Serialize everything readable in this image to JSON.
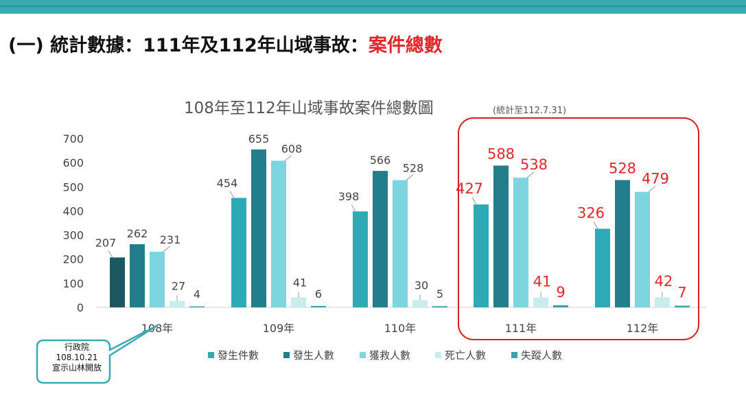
{
  "page": {
    "heading_prefix": "(一) 統計數據：111年及112年山域事故：",
    "heading_highlight": "案件總數",
    "callout_lines": [
      "行政院",
      "108.10.21",
      "宣示山林開放"
    ]
  },
  "colors": {
    "top_bar": "#3aa9b0",
    "highlight": "#e3262a",
    "highlight_box": "#d42020",
    "callout_border": "#3aa9b0"
  },
  "chart_data": {
    "type": "bar",
    "title": "108年至112年山域事故案件總數圖",
    "subtitle": "(統計至112.7.31)",
    "categories": [
      "108年",
      "109年",
      "110年",
      "111年",
      "112年"
    ],
    "highlighted_categories": [
      "111年",
      "112年"
    ],
    "ylim": [
      0,
      700
    ],
    "yticks": [
      0,
      100,
      200,
      300,
      400,
      500,
      600,
      700
    ],
    "grid": false,
    "legend_position": "bottom",
    "series": [
      {
        "name": "發生件數",
        "color": "#2ea9b6",
        "values": [
          207,
          454,
          398,
          427,
          326
        ]
      },
      {
        "name": "發生人數",
        "color": "#227e8a",
        "values": [
          262,
          655,
          566,
          588,
          528
        ]
      },
      {
        "name": "獲救人數",
        "color": "#7dd6df",
        "values": [
          231,
          608,
          528,
          538,
          479
        ]
      },
      {
        "name": "死亡人數",
        "color": "#c9ecef",
        "values": [
          27,
          41,
          30,
          41,
          42
        ]
      },
      {
        "name": "失蹤人數",
        "color": "#3aa0aa",
        "values": [
          4,
          6,
          5,
          9,
          7
        ]
      }
    ],
    "first_bar_override_color": "#1d5862"
  }
}
